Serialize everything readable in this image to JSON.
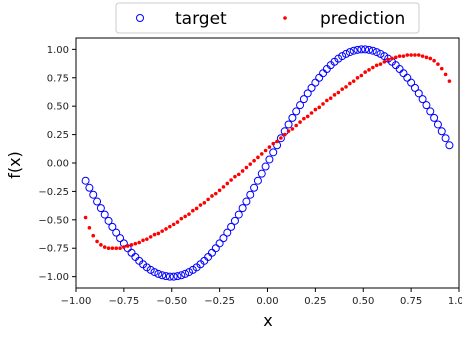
{
  "chart_data": {
    "type": "scatter",
    "xlabel": "x",
    "ylabel": "f(x)",
    "xlim": [
      -1.0,
      1.0
    ],
    "ylim": [
      -1.1,
      1.1
    ],
    "x_ticks": [
      -1.0,
      -0.75,
      -0.5,
      -0.25,
      0.0,
      0.25,
      0.5,
      0.75,
      1.0
    ],
    "x_tick_labels": [
      "−1.00",
      "−0.75",
      "−0.50",
      "−0.25",
      "0.00",
      "0.25",
      "0.50",
      "0.75",
      "1.00"
    ],
    "y_ticks": [
      1.0,
      0.75,
      0.5,
      0.25,
      0.0,
      -0.25,
      -0.5,
      -0.75,
      -1.0
    ],
    "y_tick_labels": [
      "1.00",
      "0.75",
      "0.50",
      "0.25",
      "0.00",
      "−0.25",
      "−0.50",
      "−0.75",
      "−1.00"
    ],
    "grid": false,
    "legend": {
      "placement": "top",
      "columns": 2
    },
    "series": [
      {
        "name": "target",
        "marker": "open-circle",
        "color": "#0000ff",
        "x": [
          -0.95,
          -0.93,
          -0.91,
          -0.89,
          -0.87,
          -0.85,
          -0.83,
          -0.81,
          -0.79,
          -0.77,
          -0.75,
          -0.73,
          -0.71,
          -0.69,
          -0.67,
          -0.65,
          -0.63,
          -0.61,
          -0.59,
          -0.57,
          -0.55,
          -0.53,
          -0.51,
          -0.49,
          -0.47,
          -0.45,
          -0.43,
          -0.41,
          -0.39,
          -0.37,
          -0.35,
          -0.33,
          -0.31,
          -0.29,
          -0.27,
          -0.25,
          -0.23,
          -0.21,
          -0.19,
          -0.17,
          -0.15,
          -0.13,
          -0.11,
          -0.09,
          -0.07,
          -0.05,
          -0.03,
          -0.01,
          0.01,
          0.03,
          0.05,
          0.07,
          0.09,
          0.11,
          0.13,
          0.15,
          0.17,
          0.19,
          0.21,
          0.23,
          0.25,
          0.27,
          0.29,
          0.31,
          0.33,
          0.35,
          0.37,
          0.39,
          0.41,
          0.43,
          0.45,
          0.47,
          0.49,
          0.51,
          0.53,
          0.55,
          0.57,
          0.59,
          0.61,
          0.63,
          0.65,
          0.67,
          0.69,
          0.71,
          0.73,
          0.75,
          0.77,
          0.79,
          0.81,
          0.83,
          0.85,
          0.87,
          0.89,
          0.91,
          0.93,
          0.95
        ],
        "y": [
          -0.156,
          -0.218,
          -0.279,
          -0.339,
          -0.397,
          -0.454,
          -0.509,
          -0.562,
          -0.613,
          -0.661,
          -0.707,
          -0.75,
          -0.79,
          -0.827,
          -0.861,
          -0.891,
          -0.918,
          -0.941,
          -0.96,
          -0.976,
          -0.988,
          -0.996,
          -1.0,
          -1.0,
          -0.996,
          -0.988,
          -0.976,
          -0.96,
          -0.941,
          -0.918,
          -0.891,
          -0.861,
          -0.827,
          -0.79,
          -0.75,
          -0.707,
          -0.661,
          -0.613,
          -0.562,
          -0.509,
          -0.454,
          -0.397,
          -0.339,
          -0.279,
          -0.218,
          -0.156,
          -0.094,
          -0.031,
          0.031,
          0.094,
          0.156,
          0.218,
          0.279,
          0.339,
          0.397,
          0.454,
          0.509,
          0.562,
          0.613,
          0.661,
          0.707,
          0.75,
          0.79,
          0.827,
          0.861,
          0.891,
          0.918,
          0.941,
          0.96,
          0.976,
          0.988,
          0.996,
          1.0,
          1.0,
          0.996,
          0.988,
          0.976,
          0.96,
          0.941,
          0.918,
          0.891,
          0.861,
          0.827,
          0.79,
          0.75,
          0.707,
          0.661,
          0.613,
          0.562,
          0.509,
          0.454,
          0.397,
          0.339,
          0.279,
          0.218,
          0.156
        ]
      },
      {
        "name": "prediction",
        "marker": "dot",
        "color": "#ff0000",
        "x": [
          -0.95,
          -0.93,
          -0.91,
          -0.89,
          -0.87,
          -0.85,
          -0.83,
          -0.81,
          -0.79,
          -0.77,
          -0.75,
          -0.73,
          -0.71,
          -0.69,
          -0.67,
          -0.65,
          -0.63,
          -0.61,
          -0.59,
          -0.57,
          -0.55,
          -0.53,
          -0.51,
          -0.49,
          -0.47,
          -0.45,
          -0.43,
          -0.41,
          -0.39,
          -0.37,
          -0.35,
          -0.33,
          -0.31,
          -0.29,
          -0.27,
          -0.25,
          -0.23,
          -0.21,
          -0.19,
          -0.17,
          -0.15,
          -0.13,
          -0.11,
          -0.09,
          -0.07,
          -0.05,
          -0.03,
          -0.01,
          0.01,
          0.03,
          0.05,
          0.07,
          0.09,
          0.11,
          0.13,
          0.15,
          0.17,
          0.19,
          0.21,
          0.23,
          0.25,
          0.27,
          0.29,
          0.31,
          0.33,
          0.35,
          0.37,
          0.39,
          0.41,
          0.43,
          0.45,
          0.47,
          0.49,
          0.51,
          0.53,
          0.55,
          0.57,
          0.59,
          0.61,
          0.63,
          0.65,
          0.67,
          0.69,
          0.71,
          0.73,
          0.75,
          0.77,
          0.79,
          0.81,
          0.83,
          0.85,
          0.87,
          0.89,
          0.91,
          0.93,
          0.95
        ],
        "y": [
          -0.48,
          -0.57,
          -0.64,
          -0.69,
          -0.72,
          -0.74,
          -0.75,
          -0.75,
          -0.75,
          -0.75,
          -0.74,
          -0.73,
          -0.72,
          -0.71,
          -0.7,
          -0.68,
          -0.67,
          -0.65,
          -0.63,
          -0.62,
          -0.6,
          -0.58,
          -0.56,
          -0.54,
          -0.52,
          -0.49,
          -0.47,
          -0.45,
          -0.42,
          -0.4,
          -0.37,
          -0.35,
          -0.32,
          -0.29,
          -0.27,
          -0.24,
          -0.21,
          -0.18,
          -0.15,
          -0.12,
          -0.1,
          -0.07,
          -0.04,
          -0.01,
          0.02,
          0.05,
          0.08,
          0.11,
          0.14,
          0.17,
          0.19,
          0.22,
          0.25,
          0.28,
          0.3,
          0.33,
          0.36,
          0.39,
          0.41,
          0.44,
          0.47,
          0.49,
          0.52,
          0.55,
          0.57,
          0.6,
          0.62,
          0.65,
          0.67,
          0.7,
          0.72,
          0.75,
          0.77,
          0.8,
          0.82,
          0.84,
          0.86,
          0.87,
          0.89,
          0.91,
          0.92,
          0.93,
          0.94,
          0.94,
          0.95,
          0.95,
          0.95,
          0.95,
          0.94,
          0.93,
          0.92,
          0.9,
          0.87,
          0.83,
          0.78,
          0.72
        ]
      }
    ]
  }
}
